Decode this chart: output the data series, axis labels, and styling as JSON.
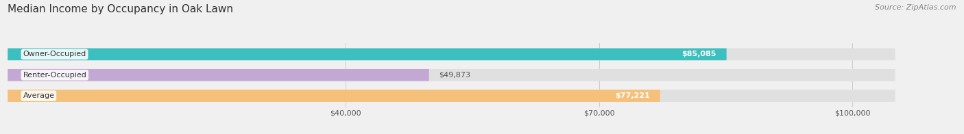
{
  "title": "Median Income by Occupancy in Oak Lawn",
  "source": "Source: ZipAtlas.com",
  "categories": [
    "Owner-Occupied",
    "Renter-Occupied",
    "Average"
  ],
  "values": [
    85085,
    49873,
    77221
  ],
  "bar_colors": [
    "#3bbfbf",
    "#c4a8d4",
    "#f5c07a"
  ],
  "value_labels": [
    "$85,085",
    "$49,873",
    "$77,221"
  ],
  "xlim": [
    0,
    110000
  ],
  "xticks": [
    40000,
    70000,
    100000
  ],
  "xticklabels": [
    "$40,000",
    "$70,000",
    "$100,000"
  ],
  "bg_color": "#f0f0f0",
  "bar_bg_color": "#e0e0e0",
  "title_fontsize": 11,
  "source_fontsize": 8,
  "label_fontsize": 8,
  "value_fontsize": 8,
  "tick_fontsize": 8,
  "bar_height": 0.58
}
